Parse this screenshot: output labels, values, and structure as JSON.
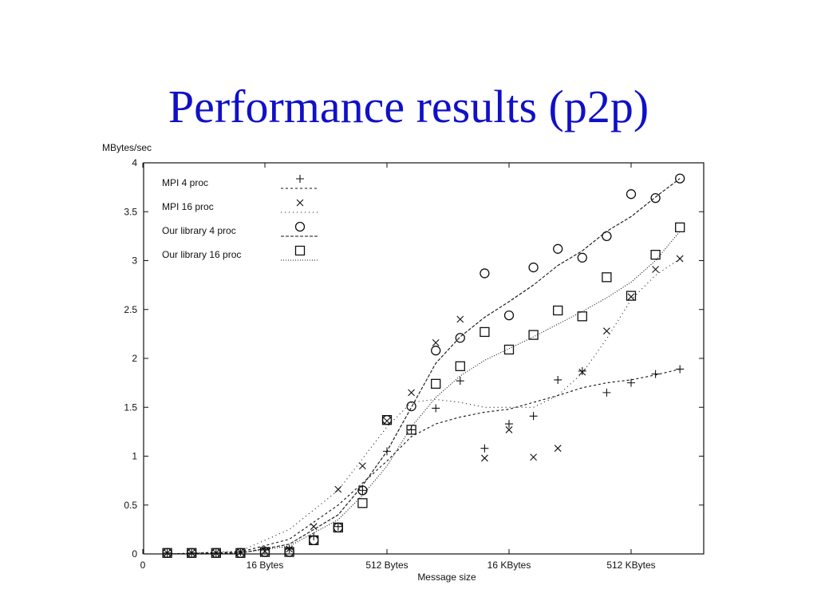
{
  "slide": {
    "title": "Performance results (p2p)"
  },
  "colors": {
    "title": "#1010c8",
    "ink": "#111111"
  },
  "chart_data": {
    "type": "line",
    "ylabel": "MBytes/sec",
    "xlabel": "Message size",
    "x_scale": "log2",
    "xlim": [
      0,
      23
    ],
    "ylim": [
      0,
      4
    ],
    "x_ticks": [
      {
        "x": 0,
        "label": "0"
      },
      {
        "x": 5,
        "label": "16 Bytes"
      },
      {
        "x": 10,
        "label": "512 Bytes"
      },
      {
        "x": 15,
        "label": "16 KBytes"
      },
      {
        "x": 20,
        "label": "512 KBytes"
      }
    ],
    "y_ticks": [
      0,
      0.5,
      1,
      1.5,
      2,
      2.5,
      3,
      3.5,
      4
    ],
    "y_tick_labels": [
      "0",
      "0.5",
      "1",
      "1.5",
      "2",
      "2.5",
      "3",
      "3.5",
      "4"
    ],
    "grid": false,
    "legend_position": "top-left",
    "series": [
      {
        "name": "MPI 4 proc",
        "marker": "plus",
        "dash": "3,3",
        "x": [
          1,
          2,
          3,
          4,
          5,
          6,
          7,
          8,
          9,
          10,
          11,
          12,
          13,
          14,
          15,
          16,
          17,
          18,
          19,
          20,
          21,
          22
        ],
        "y": [
          0.01,
          0.01,
          0.01,
          0.02,
          0.04,
          0.05,
          0.18,
          0.28,
          0.65,
          1.05,
          1.27,
          1.49,
          1.77,
          1.08,
          1.33,
          1.41,
          1.78,
          1.87,
          1.65,
          1.75,
          1.84,
          1.89
        ],
        "trend": [
          [
            1,
            0
          ],
          [
            4,
            0.02
          ],
          [
            6,
            0.15
          ],
          [
            8,
            0.5
          ],
          [
            10,
            0.95
          ],
          [
            11,
            1.2
          ],
          [
            12,
            1.33
          ],
          [
            13,
            1.4
          ],
          [
            14,
            1.45
          ],
          [
            15,
            1.48
          ],
          [
            16,
            1.55
          ],
          [
            17,
            1.62
          ],
          [
            18,
            1.7
          ],
          [
            19,
            1.75
          ],
          [
            20,
            1.78
          ],
          [
            21,
            1.83
          ],
          [
            22,
            1.89
          ]
        ]
      },
      {
        "name": "MPI 16 proc",
        "marker": "cross",
        "dash": "1,4",
        "x": [
          1,
          2,
          3,
          4,
          5,
          6,
          7,
          8,
          9,
          10,
          11,
          12,
          13,
          14,
          15,
          16,
          17,
          18,
          19,
          20,
          21,
          22
        ],
        "y": [
          0.01,
          0.01,
          0.01,
          0.02,
          0.03,
          0.05,
          0.28,
          0.66,
          0.9,
          1.36,
          1.65,
          2.16,
          2.4,
          0.98,
          1.27,
          0.99,
          1.08,
          1.86,
          2.28,
          2.63,
          2.91,
          3.02
        ],
        "trend": [
          [
            1,
            0
          ],
          [
            4,
            0.03
          ],
          [
            6,
            0.25
          ],
          [
            8,
            0.65
          ],
          [
            10,
            1.3
          ],
          [
            11,
            1.55
          ],
          [
            12,
            1.58
          ],
          [
            13,
            1.55
          ],
          [
            14,
            1.5
          ],
          [
            16,
            1.5
          ],
          [
            17,
            1.62
          ],
          [
            18,
            1.85
          ],
          [
            19,
            2.2
          ],
          [
            20,
            2.6
          ],
          [
            21,
            2.85
          ],
          [
            22,
            3.02
          ]
        ]
      },
      {
        "name": "Our library 4 proc",
        "marker": "circle",
        "dash": "4,2",
        "x": [
          1,
          2,
          3,
          4,
          5,
          6,
          7,
          8,
          9,
          10,
          11,
          12,
          13,
          14,
          15,
          16,
          17,
          18,
          19,
          20,
          21,
          22
        ],
        "y": [
          0.01,
          0.01,
          0.01,
          0.01,
          0.02,
          0.02,
          0.14,
          0.27,
          0.65,
          1.37,
          1.51,
          2.08,
          2.21,
          2.87,
          2.44,
          2.93,
          3.12,
          3.03,
          3.25,
          3.68,
          3.64,
          3.84
        ],
        "trend": [
          [
            1,
            0
          ],
          [
            4,
            0.01
          ],
          [
            6,
            0.1
          ],
          [
            8,
            0.4
          ],
          [
            9,
            0.7
          ],
          [
            10,
            1.05
          ],
          [
            11,
            1.5
          ],
          [
            12,
            1.95
          ],
          [
            13,
            2.22
          ],
          [
            14,
            2.42
          ],
          [
            15,
            2.58
          ],
          [
            16,
            2.75
          ],
          [
            17,
            2.95
          ],
          [
            18,
            3.1
          ],
          [
            19,
            3.3
          ],
          [
            20,
            3.45
          ],
          [
            21,
            3.65
          ],
          [
            22,
            3.84
          ]
        ]
      },
      {
        "name": "Our library 16 proc",
        "marker": "square",
        "dash": "1,2",
        "x": [
          1,
          2,
          3,
          4,
          5,
          6,
          7,
          8,
          9,
          10,
          11,
          12,
          13,
          14,
          15,
          16,
          17,
          18,
          19,
          20,
          21,
          22
        ],
        "y": [
          0.01,
          0.01,
          0.01,
          0.01,
          0.02,
          0.02,
          0.14,
          0.27,
          0.52,
          1.37,
          1.27,
          1.74,
          1.92,
          2.27,
          2.09,
          2.24,
          2.49,
          2.43,
          2.83,
          2.64,
          3.06,
          3.34
        ],
        "trend": [
          [
            1,
            0
          ],
          [
            4,
            0.01
          ],
          [
            6,
            0.08
          ],
          [
            8,
            0.35
          ],
          [
            9,
            0.6
          ],
          [
            10,
            0.9
          ],
          [
            11,
            1.3
          ],
          [
            12,
            1.6
          ],
          [
            13,
            1.82
          ],
          [
            14,
            1.98
          ],
          [
            15,
            2.1
          ],
          [
            16,
            2.22
          ],
          [
            17,
            2.35
          ],
          [
            18,
            2.48
          ],
          [
            19,
            2.62
          ],
          [
            20,
            2.78
          ],
          [
            21,
            3.0
          ],
          [
            22,
            3.3
          ]
        ]
      }
    ]
  }
}
